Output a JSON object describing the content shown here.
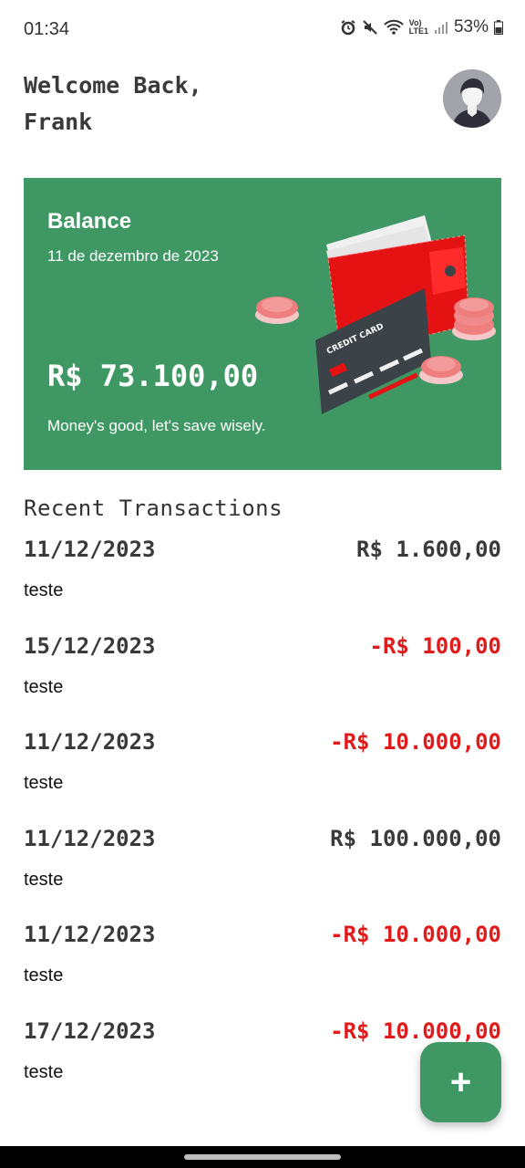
{
  "status_bar": {
    "time": "01:34",
    "battery": "53%",
    "network": "LTE1",
    "volte": "Vo)"
  },
  "header": {
    "welcome_line1": "Welcome Back,",
    "welcome_line2": "Frank"
  },
  "balance_card": {
    "title": "Balance",
    "date": "11 de dezembro de 2023",
    "amount": "R$ 73.100,00",
    "message": "Money's good, let's save wisely.",
    "card_text": "CREDIT CARD",
    "color": "#3f9863"
  },
  "transactions": {
    "title": "Recent Transactions",
    "items": [
      {
        "date": "11/12/2023",
        "amount": "R$ 1.600,00",
        "description": "teste",
        "negative": false
      },
      {
        "date": "15/12/2023",
        "amount": "-R$ 100,00",
        "description": "teste",
        "negative": true
      },
      {
        "date": "11/12/2023",
        "amount": "-R$ 10.000,00",
        "description": "teste",
        "negative": true
      },
      {
        "date": "11/12/2023",
        "amount": "R$ 100.000,00",
        "description": "teste",
        "negative": false
      },
      {
        "date": "11/12/2023",
        "amount": "-R$ 10.000,00",
        "description": "teste",
        "negative": true
      },
      {
        "date": "17/12/2023",
        "amount": "-R$ 10.000,00",
        "description": "teste",
        "negative": true
      }
    ]
  },
  "fab": {
    "label": "+",
    "icon": "plus-icon"
  },
  "colors": {
    "accent": "#3f9863",
    "negative": "#e01b1b",
    "text": "#3a3a3a"
  }
}
